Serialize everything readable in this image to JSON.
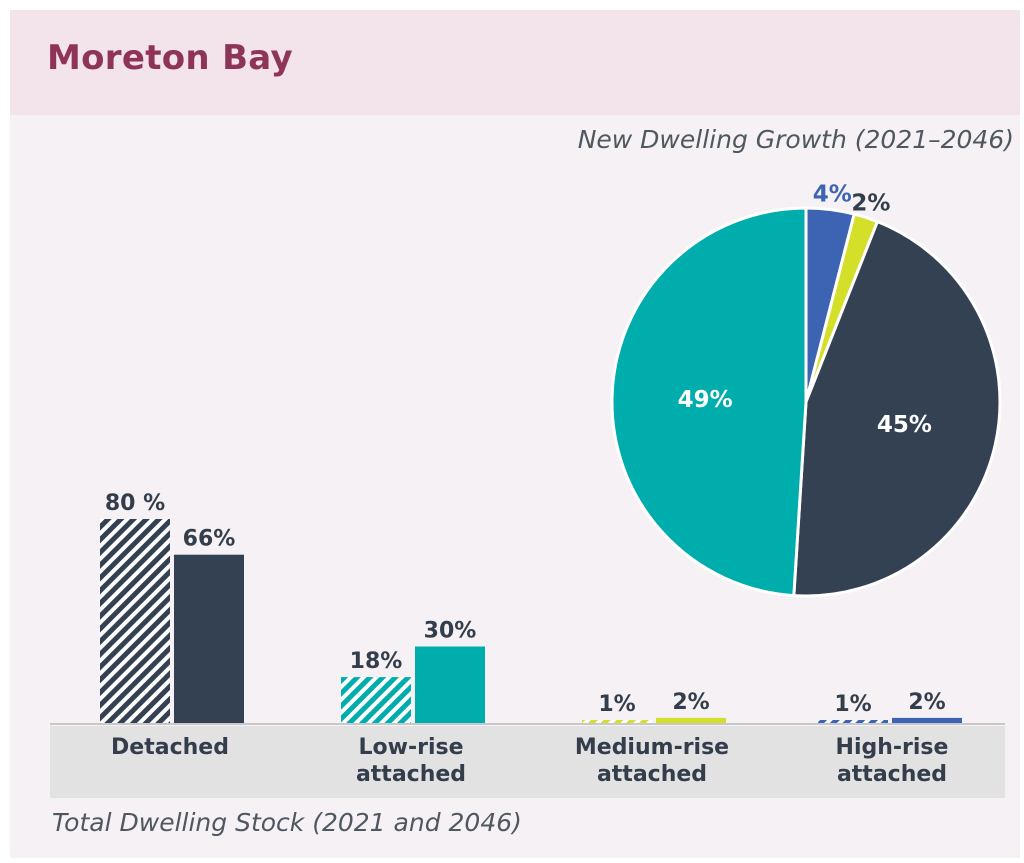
{
  "header": {
    "title": "Moreton Bay"
  },
  "colors": {
    "detached": "#334152",
    "low_rise": "#00adad",
    "medium_rise": "#d4df2a",
    "high_rise": "#3c64b3",
    "pie_label_light": "#ffffff",
    "title": "#8e3458"
  },
  "chart_data": [
    {
      "type": "bar",
      "title": "Total Dwelling Stock (2021 and 2046)",
      "categories": [
        "Detached",
        "Low-rise attached",
        "Medium-rise attached",
        "High-rise attached"
      ],
      "category_lines": [
        [
          "Detached"
        ],
        [
          "Low-rise",
          "attached"
        ],
        [
          "Medium-rise",
          "attached"
        ],
        [
          "High-rise",
          "attached"
        ]
      ],
      "series": [
        {
          "name": "2021",
          "pattern": "hatched",
          "values": [
            80,
            18,
            1,
            1
          ],
          "labels": [
            "80 %",
            "18%",
            "1%",
            "1%"
          ]
        },
        {
          "name": "2046",
          "pattern": "solid",
          "values": [
            66,
            30,
            2,
            2
          ],
          "labels": [
            "66%",
            "30%",
            "2%",
            "2%"
          ]
        }
      ],
      "ylim": [
        0,
        100
      ],
      "grid": false
    },
    {
      "type": "pie",
      "title": "New Dwelling Growth (2021–2046)",
      "slices": [
        {
          "category": "High-rise attached",
          "value": 4,
          "label": "4%",
          "color": "#3c64b3",
          "label_inside": false
        },
        {
          "category": "Medium-rise attached",
          "value": 2,
          "label": "2%",
          "color": "#d4df2a",
          "label_inside": false
        },
        {
          "category": "Detached",
          "value": 45,
          "label": "45%",
          "color": "#334152",
          "label_inside": true
        },
        {
          "category": "Low-rise attached",
          "value": 49,
          "label": "49%",
          "color": "#00adad",
          "label_inside": true
        }
      ]
    }
  ]
}
